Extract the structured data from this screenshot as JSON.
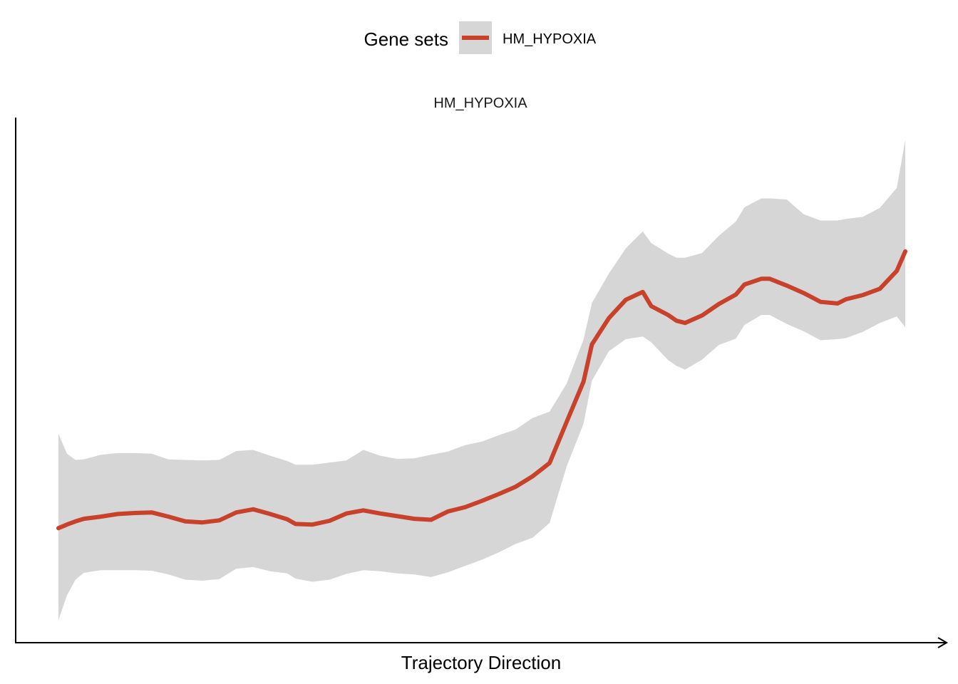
{
  "colors": {
    "line": "#c8412b",
    "ribbon": "#d6d6d6",
    "legend_key_bg": "#d6d6d6",
    "axis": "#000000"
  },
  "chart_data": {
    "type": "line",
    "title": "HM_HYPOXIA",
    "xlabel": "Trajectory Direction",
    "ylabel": "",
    "legend": {
      "title": "Gene sets",
      "placement": "top",
      "entries": [
        "HM_HYPOXIA"
      ]
    },
    "grid": false,
    "x_ticks_shown": false,
    "y_ticks_shown": false,
    "xlim": [
      0,
      1
    ],
    "ylim": [
      0,
      1
    ],
    "series": [
      {
        "name": "HM_HYPOXIA",
        "x": [
          0.0,
          0.01,
          0.02,
          0.03,
          0.05,
          0.07,
          0.09,
          0.11,
          0.13,
          0.15,
          0.17,
          0.19,
          0.21,
          0.23,
          0.25,
          0.27,
          0.28,
          0.3,
          0.32,
          0.34,
          0.36,
          0.38,
          0.4,
          0.42,
          0.44,
          0.46,
          0.48,
          0.5,
          0.52,
          0.54,
          0.56,
          0.58,
          0.6,
          0.62,
          0.63,
          0.65,
          0.67,
          0.69,
          0.7,
          0.72,
          0.73,
          0.74,
          0.76,
          0.78,
          0.8,
          0.81,
          0.83,
          0.84,
          0.86,
          0.88,
          0.9,
          0.92,
          0.93,
          0.95,
          0.97,
          0.99,
          1.0
        ],
        "values": [
          0.218,
          0.225,
          0.231,
          0.236,
          0.24,
          0.245,
          0.247,
          0.248,
          0.24,
          0.231,
          0.229,
          0.233,
          0.248,
          0.254,
          0.245,
          0.235,
          0.226,
          0.225,
          0.232,
          0.246,
          0.252,
          0.246,
          0.241,
          0.236,
          0.234,
          0.25,
          0.258,
          0.27,
          0.283,
          0.297,
          0.317,
          0.342,
          0.42,
          0.497,
          0.568,
          0.618,
          0.653,
          0.668,
          0.641,
          0.624,
          0.613,
          0.609,
          0.623,
          0.645,
          0.663,
          0.682,
          0.693,
          0.693,
          0.68,
          0.666,
          0.649,
          0.646,
          0.654,
          0.662,
          0.674,
          0.708,
          0.745
        ],
        "lower": [
          0.043,
          0.09,
          0.12,
          0.133,
          0.138,
          0.138,
          0.138,
          0.137,
          0.13,
          0.12,
          0.118,
          0.121,
          0.141,
          0.144,
          0.136,
          0.132,
          0.122,
          0.116,
          0.12,
          0.131,
          0.138,
          0.136,
          0.132,
          0.13,
          0.125,
          0.134,
          0.146,
          0.158,
          0.172,
          0.188,
          0.2,
          0.228,
          0.335,
          0.417,
          0.499,
          0.555,
          0.578,
          0.583,
          0.572,
          0.538,
          0.527,
          0.52,
          0.539,
          0.567,
          0.579,
          0.605,
          0.624,
          0.624,
          0.607,
          0.593,
          0.576,
          0.578,
          0.58,
          0.592,
          0.609,
          0.621,
          0.601
        ],
        "upper": [
          0.398,
          0.36,
          0.348,
          0.349,
          0.358,
          0.361,
          0.361,
          0.36,
          0.349,
          0.348,
          0.347,
          0.348,
          0.365,
          0.367,
          0.356,
          0.346,
          0.339,
          0.339,
          0.343,
          0.347,
          0.367,
          0.356,
          0.35,
          0.351,
          0.358,
          0.364,
          0.376,
          0.383,
          0.395,
          0.406,
          0.428,
          0.44,
          0.493,
          0.577,
          0.647,
          0.703,
          0.751,
          0.783,
          0.761,
          0.741,
          0.733,
          0.733,
          0.742,
          0.775,
          0.802,
          0.829,
          0.846,
          0.846,
          0.844,
          0.816,
          0.804,
          0.804,
          0.807,
          0.811,
          0.828,
          0.866,
          0.957
        ]
      }
    ]
  }
}
